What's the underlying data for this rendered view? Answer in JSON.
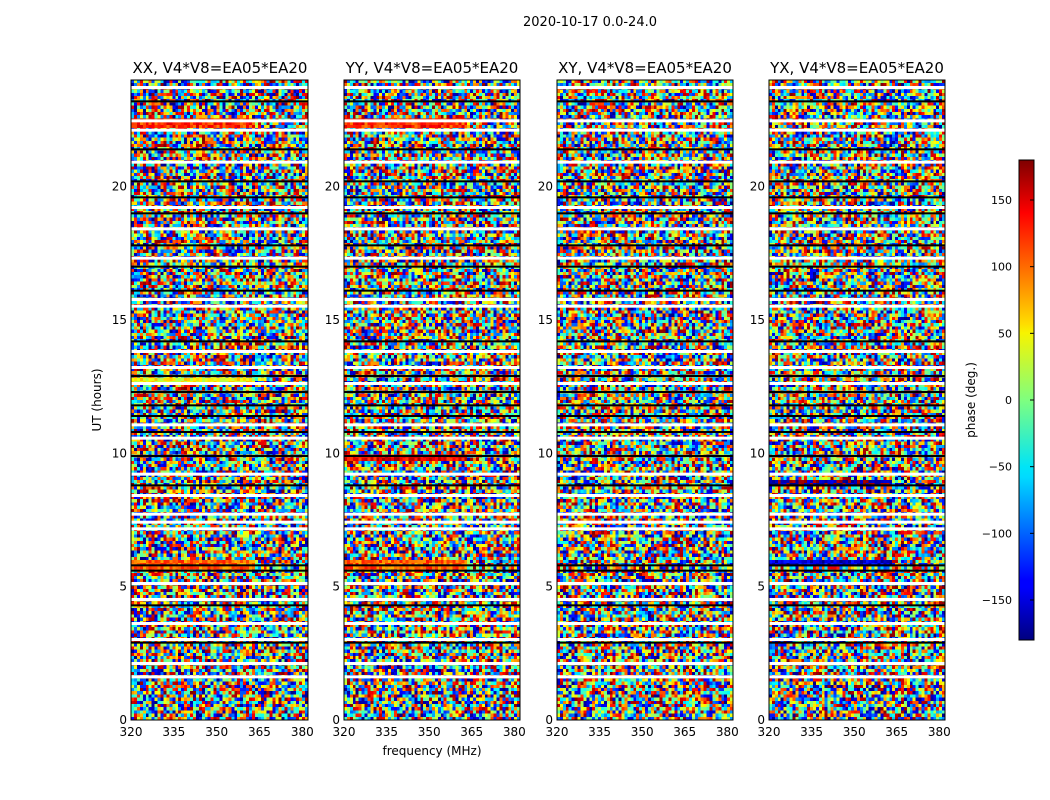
{
  "chart_data": {
    "type": "heatmap",
    "title": "2020-10-17 0.0-24.0",
    "xlabel": "frequency (MHz)",
    "ylabel": "UT (hours)",
    "xlim": [
      320,
      382
    ],
    "ylim": [
      0,
      24
    ],
    "x_ticks": [
      "320",
      "335",
      "350",
      "365",
      "380"
    ],
    "x_tick_values": [
      320,
      335,
      350,
      365,
      380
    ],
    "y_ticks": [
      "0",
      "5",
      "10",
      "15",
      "20"
    ],
    "y_tick_values": [
      0,
      5,
      10,
      15,
      20
    ],
    "panels": [
      {
        "title": "XX, V4*V8=EA05*EA20"
      },
      {
        "title": "YY, V4*V8=EA05*EA20"
      },
      {
        "title": "XY, V4*V8=EA05*EA20"
      },
      {
        "title": "YX, V4*V8=EA05*EA20"
      }
    ],
    "colorbar": {
      "label": "phase (deg.)",
      "range": [
        -180,
        180
      ],
      "ticks": [
        "150",
        "100",
        "50",
        "0",
        "−50",
        "−100",
        "−150"
      ],
      "tick_values": [
        150,
        100,
        50,
        0,
        -50,
        -100,
        -150
      ],
      "colormap": "jet"
    },
    "gap_hours": [
      1.6,
      2.1,
      3.0,
      3.6,
      4.5,
      5.1,
      7.15,
      7.4,
      7.7,
      8.4,
      9.2,
      10.55,
      11.05,
      12.6,
      13.2,
      13.8,
      15.5,
      15.75,
      17.3,
      18.4,
      19.2,
      20.9,
      22.1,
      22.45,
      23.7
    ],
    "line_hours": [
      2.9,
      4.3,
      5.6,
      5.8,
      8.8,
      9.9,
      10.8,
      11.4,
      11.8,
      12.3,
      12.9,
      14.2,
      16.1,
      17.0,
      17.8,
      19.0,
      19.6,
      20.2,
      21.4,
      23.2
    ],
    "warm_bands": [
      {
        "start": 22.2,
        "end": 22.6,
        "phase": 120,
        "panels": [
          0,
          1
        ]
      },
      {
        "start": 5.7,
        "end": 5.95,
        "phase": 100,
        "panels": [
          0,
          1
        ]
      },
      {
        "start": 9.7,
        "end": 9.9,
        "phase": 140,
        "panels": [
          1
        ]
      },
      {
        "start": 12.6,
        "end": 12.8,
        "phase": 40,
        "panels": [
          0
        ]
      },
      {
        "start": 8.8,
        "end": 9.0,
        "phase": -170,
        "panels": [
          3
        ]
      },
      {
        "start": 5.8,
        "end": 5.95,
        "phase": -150,
        "panels": [
          3
        ]
      }
    ]
  }
}
